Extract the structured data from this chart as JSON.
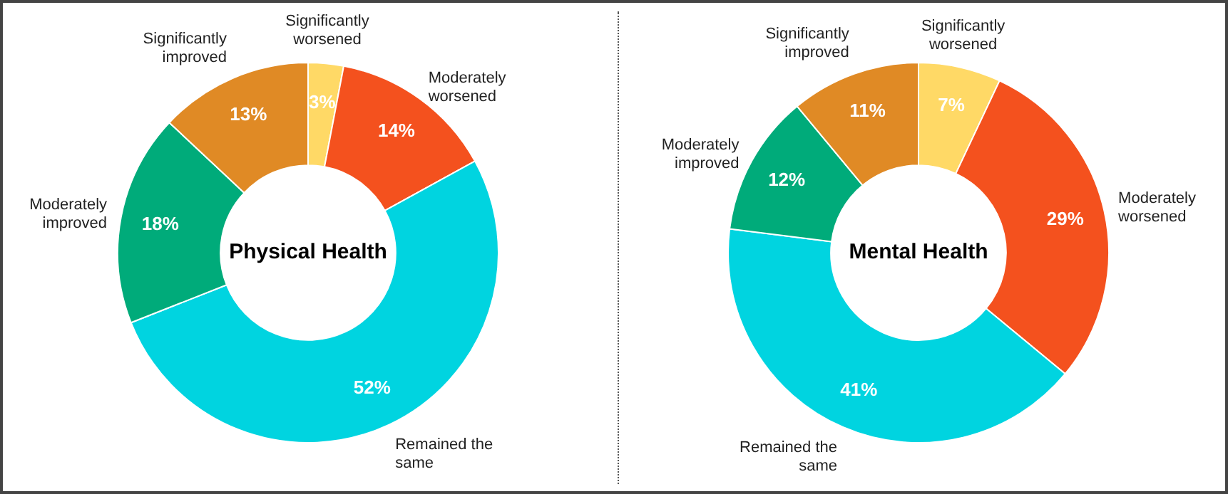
{
  "chart_data": [
    {
      "type": "donut",
      "title": "Physical Health",
      "categories": [
        "Significantly worsened",
        "Moderately worsened",
        "Remained the same",
        "Moderately improved",
        "Significantly improved"
      ],
      "values": [
        3,
        14,
        52,
        18,
        13
      ],
      "value_labels": [
        "3%",
        "14%",
        "52%",
        "18%",
        "13%"
      ],
      "colors": [
        "#ffd966",
        "#f4511e",
        "#00d4e0",
        "#00ab7a",
        "#e08a25"
      ],
      "legend": false
    },
    {
      "type": "donut",
      "title": "Mental Health",
      "categories": [
        "Significantly worsened",
        "Moderately worsened",
        "Remained the same",
        "Moderately improved",
        "Significantly improved"
      ],
      "values": [
        7,
        29,
        41,
        12,
        11
      ],
      "value_labels": [
        "7%",
        "29%",
        "41%",
        "12%",
        "11%"
      ],
      "colors": [
        "#ffd966",
        "#f4511e",
        "#00d4e0",
        "#00ab7a",
        "#e08a25"
      ],
      "legend": false
    }
  ]
}
